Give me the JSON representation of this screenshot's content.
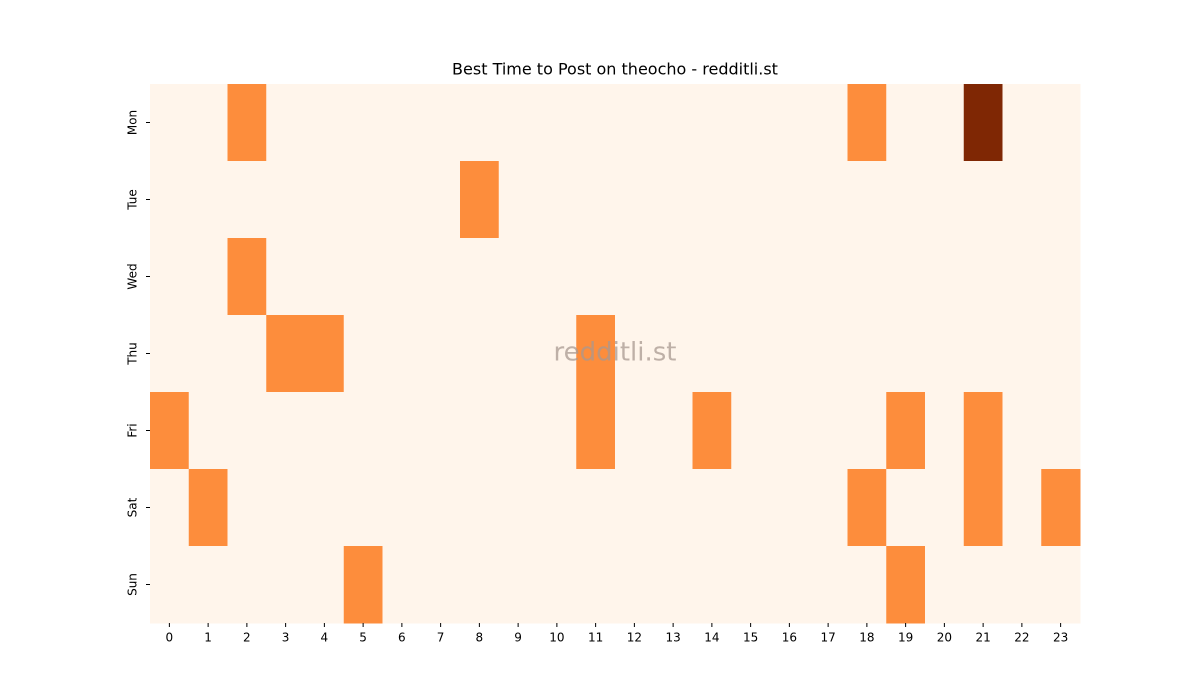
{
  "chart_data": {
    "type": "heatmap",
    "title": "Best Time to Post on theocho - redditli.st",
    "watermark": "redditli.st",
    "x_categories": [
      0,
      1,
      2,
      3,
      4,
      5,
      6,
      7,
      8,
      9,
      10,
      11,
      12,
      13,
      14,
      15,
      16,
      17,
      18,
      19,
      20,
      21,
      22,
      23
    ],
    "y_categories": [
      "Mon",
      "Tue",
      "Wed",
      "Thu",
      "Fri",
      "Sat",
      "Sun"
    ],
    "values": [
      [
        0,
        0,
        1,
        0,
        0,
        0,
        0,
        0,
        0,
        0,
        0,
        0,
        0,
        0,
        0,
        0,
        0,
        0,
        1,
        0,
        0,
        2,
        0,
        0
      ],
      [
        0,
        0,
        0,
        0,
        0,
        0,
        0,
        0,
        1,
        0,
        0,
        0,
        0,
        0,
        0,
        0,
        0,
        0,
        0,
        0,
        0,
        0,
        0,
        0
      ],
      [
        0,
        0,
        1,
        0,
        0,
        0,
        0,
        0,
        0,
        0,
        0,
        0,
        0,
        0,
        0,
        0,
        0,
        0,
        0,
        0,
        0,
        0,
        0,
        0
      ],
      [
        0,
        0,
        0,
        1,
        1,
        0,
        0,
        0,
        0,
        0,
        0,
        1,
        0,
        0,
        0,
        0,
        0,
        0,
        0,
        0,
        0,
        0,
        0,
        0
      ],
      [
        1,
        0,
        0,
        0,
        0,
        0,
        0,
        0,
        0,
        0,
        0,
        1,
        0,
        0,
        1,
        0,
        0,
        0,
        0,
        1,
        0,
        1,
        0,
        0
      ],
      [
        0,
        1,
        0,
        0,
        0,
        0,
        0,
        0,
        0,
        0,
        0,
        0,
        0,
        0,
        0,
        0,
        0,
        0,
        1,
        0,
        0,
        1,
        0,
        1
      ],
      [
        0,
        0,
        0,
        0,
        0,
        1,
        0,
        0,
        0,
        0,
        0,
        0,
        0,
        0,
        0,
        0,
        0,
        0,
        0,
        1,
        0,
        0,
        0,
        0
      ]
    ],
    "colorscale": [
      "#fff5eb",
      "#fd8d3c",
      "#7f2704"
    ],
    "zlim": [
      0,
      2
    ]
  }
}
